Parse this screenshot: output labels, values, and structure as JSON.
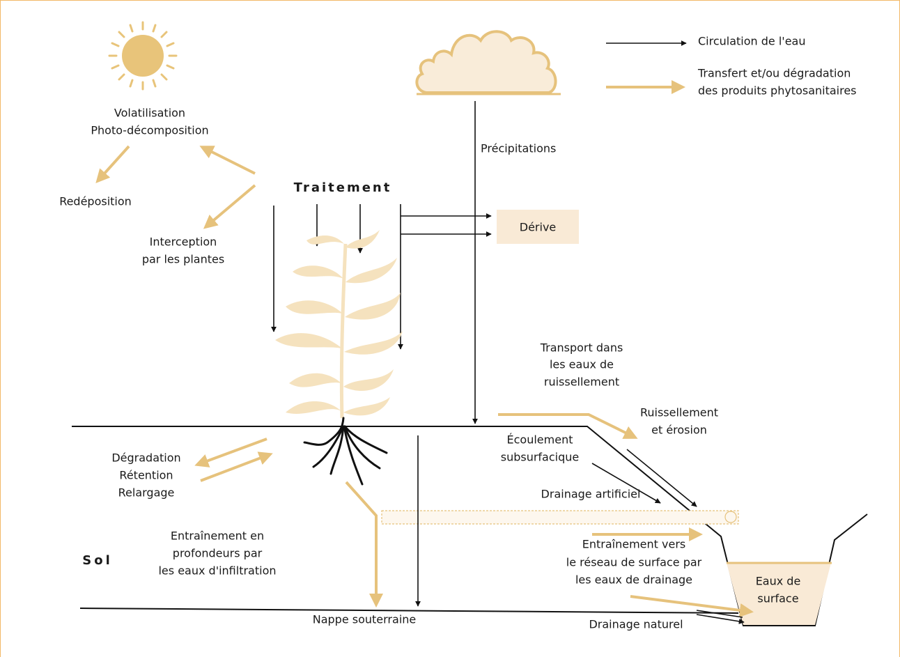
{
  "legend": {
    "water": "Circulation de l'eau",
    "transfer": [
      "Transfert et/ou dégradation",
      "des produits phytosanitaires"
    ]
  },
  "labels": {
    "volatilisation": [
      "Volatilisation",
      "Photo-décomposition"
    ],
    "redeposition": "Redéposition",
    "interception": [
      "Interception",
      "par les plantes"
    ],
    "traitement": "Traitement",
    "precipitations": "Précipitations",
    "derive": "Dérive",
    "transport": [
      "Transport dans",
      "les eaux de",
      "ruissellement"
    ],
    "ruissellement": [
      "Ruissellement",
      "et érosion"
    ],
    "ecoulement": [
      "Écoulement",
      "subsurfacique"
    ],
    "degradation": [
      "Dégradation",
      "Rétention",
      "Relargage"
    ],
    "drainage_artificiel": "Drainage artificiel",
    "entrainement_profondeur": [
      "Entraînement en",
      "profondeurs par",
      "les eaux d'infiltration"
    ],
    "sol": "Sol",
    "entrainement_surface": [
      "Entraînement vers",
      "le réseau de surface par",
      "les eaux de drainage"
    ],
    "eaux_surface": [
      "Eaux de",
      "surface"
    ],
    "nappe": "Nappe souterraine",
    "drainage_naturel": "Drainage naturel"
  }
}
